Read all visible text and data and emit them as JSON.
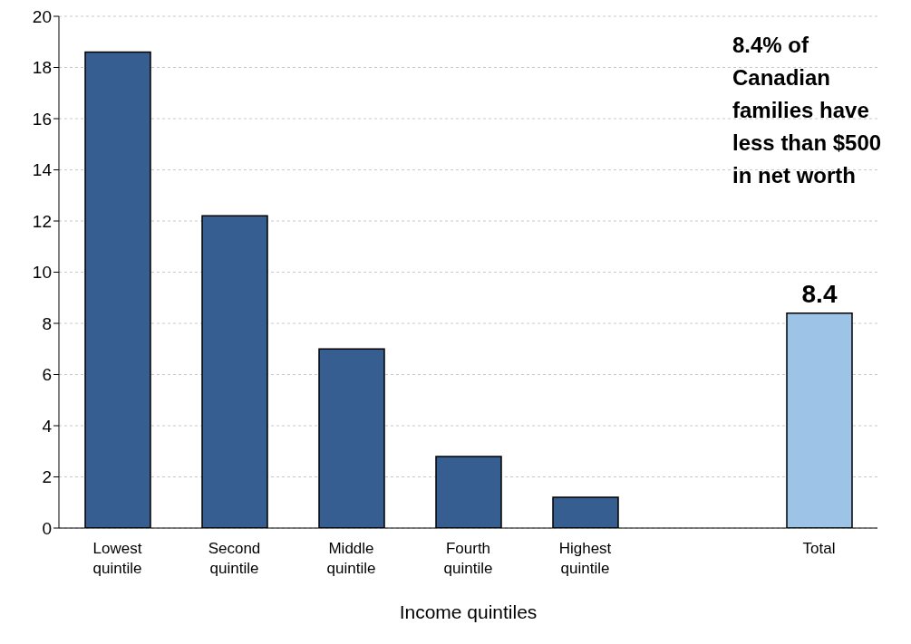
{
  "chart_data": {
    "type": "bar",
    "xlabel": "Income quintiles",
    "categories": [
      "Lowest quintile",
      "Second quintile",
      "Middle quintile",
      "Fourth quintile",
      "Highest quintile",
      null,
      "Total"
    ],
    "values": [
      18.6,
      12.2,
      7.0,
      2.8,
      1.2,
      null,
      8.4
    ],
    "colors": [
      "#375e90",
      "#375e90",
      "#375e90",
      "#375e90",
      "#375e90",
      null,
      "#9dc3e6"
    ],
    "value_labels": [
      null,
      null,
      null,
      null,
      null,
      null,
      "8.4"
    ],
    "ylim": [
      0,
      20
    ],
    "yticks": [
      0,
      2,
      4,
      6,
      8,
      10,
      12,
      14,
      16,
      18,
      20
    ],
    "grid": "y",
    "annotations": [
      "8.4% of Canadian families have less than $500 in net worth"
    ]
  }
}
